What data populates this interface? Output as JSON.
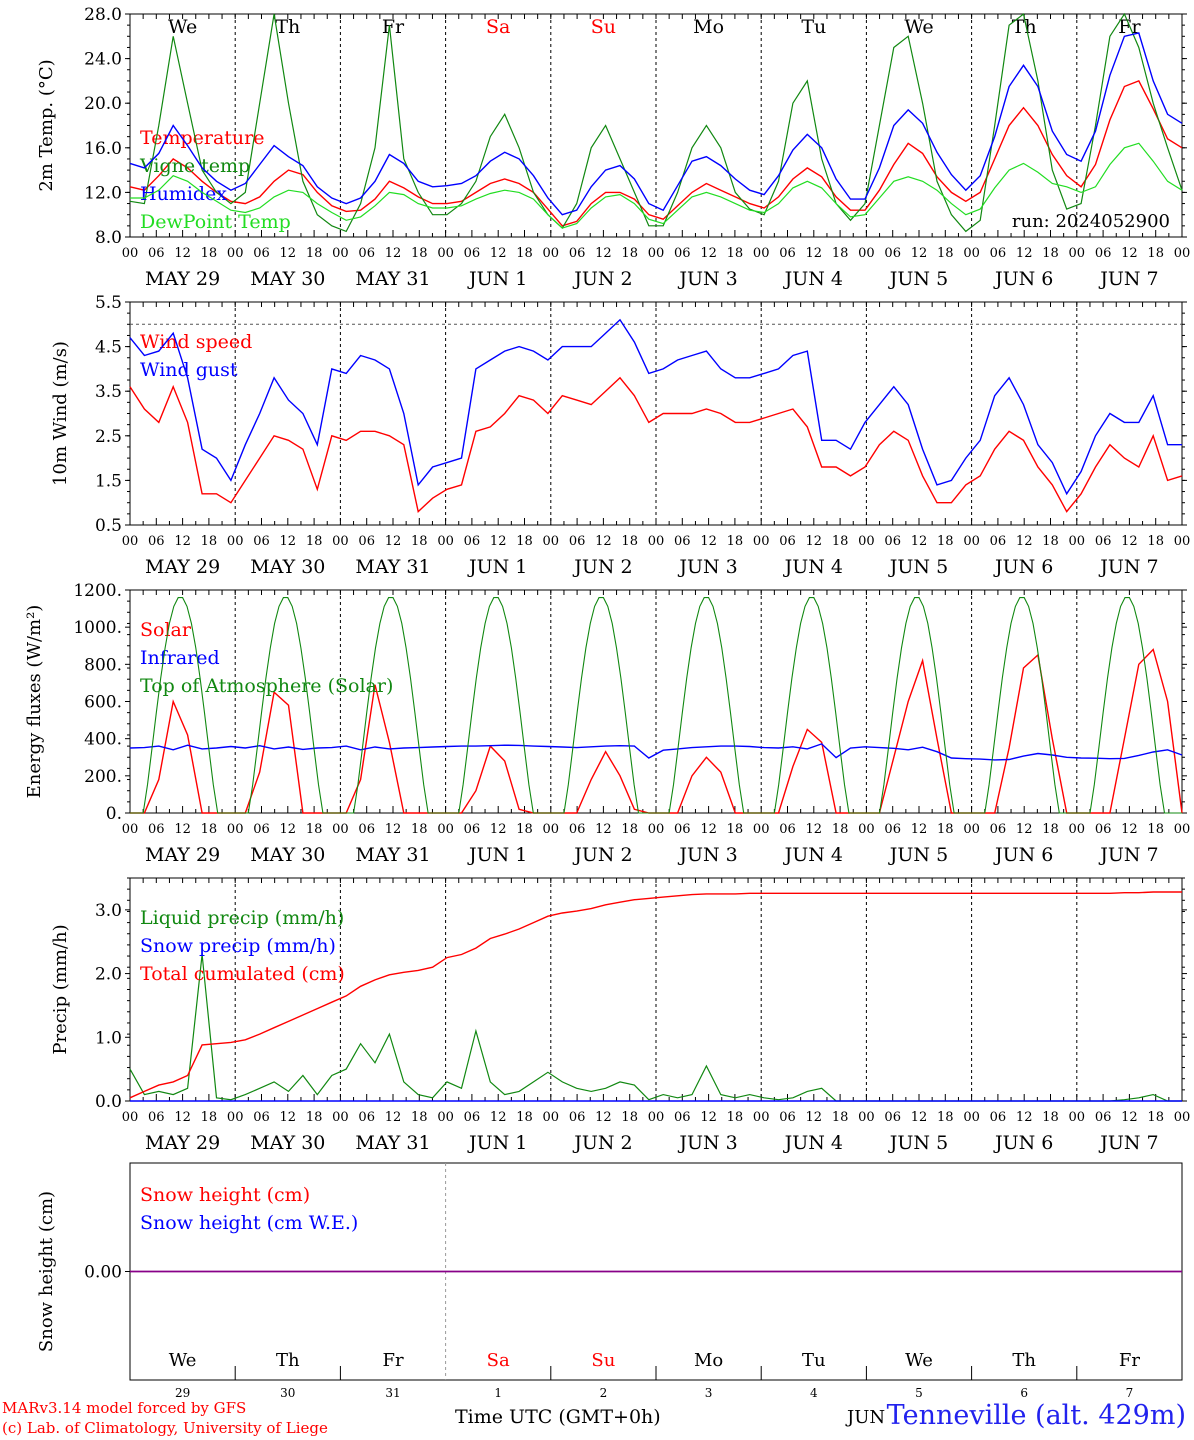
{
  "colors": {
    "red": "#ff0000",
    "green": "#118811",
    "blue": "#0000ff",
    "lime": "#22dd22",
    "purple": "#880088"
  },
  "day_tags": [
    "We",
    "Th",
    "Fr",
    "Sa",
    "Su",
    "Mo",
    "Tu",
    "We",
    "Th",
    "Fr"
  ],
  "day_tag_colors": [
    "#000000",
    "#000000",
    "#000000",
    "#ff0000",
    "#ff0000",
    "#000000",
    "#000000",
    "#000000",
    "#000000",
    "#000000"
  ],
  "date_labels": [
    "MAY 29",
    "MAY 30",
    "MAY 31",
    "JUN  1",
    "JUN  2",
    "JUN  3",
    "JUN  4",
    "JUN  5",
    "JUN  6",
    "JUN  7"
  ],
  "hour_labels": [
    "00",
    "06",
    "12",
    "18"
  ],
  "day_numbers": [
    "29",
    "30",
    "31",
    "1",
    "2",
    "3",
    "4",
    "5",
    "6",
    "7"
  ],
  "run_label": "run: 2024052900",
  "footer": {
    "credit_line1": "MARv3.14 model forced by GFS",
    "credit_line2": "(c) Lab. of Climatology, University of Liege",
    "x_title": "Time UTC (GMT+0h)",
    "month_label": "JUN",
    "station": "Tenneville (alt. 429m)"
  },
  "chart_data": [
    {
      "type": "line",
      "ylabel": "2m Temp. (°C)",
      "ylim": [
        8,
        28
      ],
      "yticks": [
        "8.0",
        "12.0",
        "16.0",
        "20.0",
        "24.0",
        "28.0"
      ],
      "x_unit": "hours since 2024-05-29 00 UTC (3-hourly)",
      "series": [
        {
          "name": "Temperature",
          "color": "red",
          "values": [
            12.5,
            12.2,
            13.5,
            15,
            14.2,
            13,
            12,
            11.2,
            11,
            11.6,
            13,
            14,
            13.6,
            12,
            10.8,
            10.3,
            10.4,
            11.4,
            13,
            12.4,
            11.6,
            11,
            11,
            11.2,
            12,
            12.8,
            13.2,
            12.8,
            12,
            10.5,
            9,
            9.4,
            11,
            12,
            12,
            11.4,
            10,
            9.6,
            10.8,
            12,
            12.8,
            12.2,
            11.6,
            11,
            10.6,
            11.6,
            13.2,
            14.2,
            13.4,
            11.6,
            10.4,
            10.4,
            12.2,
            14.5,
            16.4,
            15.5,
            13.4,
            12,
            11.2,
            12,
            15,
            18,
            19.6,
            18,
            15.4,
            13.5,
            12.5,
            14.5,
            18.5,
            21.5,
            22,
            19.5,
            16.8,
            16
          ]
        },
        {
          "name": "Vigne temp",
          "color": "green",
          "values": [
            11.2,
            11,
            18,
            26,
            20,
            14,
            12,
            11,
            12,
            20,
            28,
            20,
            13,
            10,
            9,
            8.5,
            11,
            16,
            27,
            15,
            12,
            10,
            10,
            11,
            13,
            17,
            19,
            16,
            12,
            10,
            8.8,
            11,
            16,
            18,
            15,
            12,
            9,
            9,
            12,
            16,
            18,
            16,
            12,
            10.5,
            10,
            13,
            20,
            22,
            15,
            11,
            9.5,
            11,
            18,
            25,
            26,
            20,
            13,
            10,
            8.5,
            9.5,
            18,
            27,
            28,
            22,
            14,
            10.5,
            11,
            18,
            26,
            28,
            25,
            20,
            16,
            12.2
          ]
        },
        {
          "name": "Humidex",
          "color": "blue",
          "values": [
            14.6,
            14.2,
            15.5,
            18,
            16.2,
            14.2,
            13,
            12.2,
            12.8,
            14.5,
            16.2,
            15.2,
            14.4,
            12.5,
            11.5,
            11,
            11.5,
            13,
            15.4,
            14.6,
            13,
            12.5,
            12.6,
            12.8,
            13.5,
            14.8,
            15.6,
            15,
            13.5,
            11.5,
            10,
            10.4,
            12.5,
            14,
            14.4,
            13.2,
            11,
            10.4,
            12.6,
            14.8,
            15.2,
            14.4,
            13.2,
            12.2,
            11.8,
            13.5,
            15.8,
            17.2,
            16,
            13.2,
            11.4,
            11.4,
            14.2,
            18,
            19.4,
            18.2,
            15.6,
            13.6,
            12.2,
            13.5,
            17,
            21.5,
            23.4,
            21.5,
            17.5,
            15.4,
            14.8,
            17.5,
            22.5,
            26,
            26.3,
            22,
            19,
            18.2
          ]
        },
        {
          "name": "DewPoint Temp",
          "color": "lime",
          "values": [
            11.5,
            11.5,
            12.2,
            13.5,
            13,
            12,
            11.2,
            10.4,
            10.2,
            10.6,
            11.6,
            12.2,
            12,
            11,
            10.2,
            9.5,
            9.8,
            10.8,
            12,
            11.8,
            11,
            10.6,
            10.6,
            10.8,
            11.4,
            11.9,
            12.2,
            12,
            11.4,
            10,
            8.8,
            9.2,
            10.6,
            11.6,
            11.8,
            11,
            9.6,
            9.2,
            10.4,
            11.6,
            12,
            11.6,
            11,
            10.4,
            10.2,
            11,
            12.4,
            13,
            12.4,
            11,
            9.8,
            10,
            11.5,
            13,
            13.4,
            13,
            12.2,
            11,
            10,
            10.5,
            12.4,
            14,
            14.6,
            13.8,
            12.8,
            12.5,
            12,
            12.5,
            14.5,
            16,
            16.4,
            14.8,
            13,
            12.2
          ]
        }
      ]
    },
    {
      "type": "line",
      "ylabel": "10m Wind (m/s)",
      "ylim": [
        0.5,
        5.5
      ],
      "yticks": [
        "0.5",
        "1.5",
        "2.5",
        "3.5",
        "4.5",
        "5.5"
      ],
      "reference_line": 5.0,
      "series": [
        {
          "name": "Wind speed",
          "color": "red",
          "values": [
            3.6,
            3.1,
            2.8,
            3.6,
            2.8,
            1.2,
            1.2,
            1.0,
            1.5,
            2.0,
            2.5,
            2.4,
            2.2,
            1.3,
            2.5,
            2.4,
            2.6,
            2.6,
            2.5,
            2.3,
            0.8,
            1.1,
            1.3,
            1.4,
            2.6,
            2.7,
            3.0,
            3.4,
            3.3,
            3.0,
            3.4,
            3.3,
            3.2,
            3.5,
            3.8,
            3.4,
            2.8,
            3.0,
            3.0,
            3.0,
            3.1,
            3.0,
            2.8,
            2.8,
            2.9,
            3.0,
            3.1,
            2.7,
            1.8,
            1.8,
            1.6,
            1.8,
            2.3,
            2.6,
            2.4,
            1.6,
            1.0,
            1.0,
            1.4,
            1.6,
            2.2,
            2.6,
            2.4,
            1.8,
            1.4,
            0.8,
            1.2,
            1.8,
            2.3,
            2.0,
            1.8,
            2.5,
            1.5,
            1.6
          ]
        },
        {
          "name": "Wind gust",
          "color": "blue",
          "values": [
            4.7,
            4.3,
            4.4,
            4.8,
            3.8,
            2.2,
            2.0,
            1.5,
            2.3,
            3.0,
            3.8,
            3.3,
            3.0,
            2.3,
            4.0,
            3.9,
            4.3,
            4.2,
            4.0,
            3.0,
            1.4,
            1.8,
            1.9,
            2.0,
            4.0,
            4.2,
            4.4,
            4.5,
            4.4,
            4.2,
            4.5,
            4.5,
            4.5,
            4.8,
            5.1,
            4.6,
            3.9,
            4.0,
            4.2,
            4.3,
            4.4,
            4.0,
            3.8,
            3.8,
            3.9,
            4.0,
            4.3,
            4.4,
            2.4,
            2.4,
            2.2,
            2.8,
            3.2,
            3.6,
            3.2,
            2.2,
            1.4,
            1.5,
            2.0,
            2.4,
            3.4,
            3.8,
            3.2,
            2.3,
            1.9,
            1.2,
            1.7,
            2.5,
            3.0,
            2.8,
            2.8,
            3.4,
            2.3,
            2.3
          ]
        }
      ]
    },
    {
      "type": "line",
      "ylabel": "Energy fluxes (W/m²)",
      "ylim": [
        0,
        1200
      ],
      "yticks": [
        "0.",
        "200.",
        "400.",
        "600.",
        "800.",
        "1000.",
        "1200."
      ],
      "series": [
        {
          "name": "Solar",
          "color": "red",
          "values": [
            0,
            0,
            180,
            600,
            420,
            0,
            0,
            0,
            0,
            220,
            650,
            580,
            0,
            0,
            0,
            0,
            180,
            690,
            380,
            0,
            0,
            0,
            0,
            0,
            120,
            360,
            280,
            20,
            0,
            0,
            0,
            0,
            180,
            330,
            200,
            20,
            0,
            0,
            0,
            200,
            300,
            220,
            0,
            0,
            0,
            0,
            250,
            450,
            380,
            0,
            0,
            0,
            0,
            300,
            600,
            820,
            400,
            0,
            0,
            0,
            0,
            350,
            780,
            850,
            400,
            0,
            0,
            0,
            0,
            400,
            800,
            880,
            600,
            0
          ]
        },
        {
          "name": "Infrared",
          "color": "blue",
          "values": [
            350,
            352,
            360,
            340,
            365,
            345,
            350,
            358,
            350,
            362,
            345,
            355,
            342,
            350,
            352,
            360,
            340,
            355,
            345,
            350,
            352,
            355,
            358,
            360,
            360,
            362,
            365,
            364,
            360,
            358,
            355,
            352,
            356,
            360,
            362,
            360,
            296,
            338,
            345,
            352,
            356,
            360,
            360,
            358,
            352,
            350,
            356,
            345,
            372,
            298,
            350,
            356,
            352,
            348,
            340,
            354,
            330,
            296,
            292,
            290,
            286,
            288,
            306,
            320,
            312,
            300,
            296,
            295,
            292,
            294,
            310,
            328,
            340,
            312
          ]
        },
        {
          "name": "Top of Atmosphere (Solar)",
          "color": "green",
          "sun_curve": true,
          "peak": 1165
        }
      ]
    },
    {
      "type": "line",
      "ylabel": "Precip (mm/h)",
      "ylim": [
        0,
        3.5
      ],
      "yticks": [
        "0.0",
        "1.0",
        "2.0",
        "3.0"
      ],
      "series": [
        {
          "name": "Liquid precip (mm/h)",
          "color": "green",
          "values": [
            0.5,
            0.1,
            0.15,
            0.1,
            0.2,
            2.3,
            0.05,
            0.02,
            0.1,
            0.2,
            0.3,
            0.15,
            0.4,
            0.1,
            0.4,
            0.5,
            0.9,
            0.6,
            1.05,
            0.3,
            0.1,
            0.05,
            0.3,
            0.2,
            1.1,
            0.3,
            0.1,
            0.15,
            0.3,
            0.45,
            0.3,
            0.2,
            0.15,
            0.2,
            0.3,
            0.25,
            0.02,
            0.1,
            0.05,
            0.1,
            0.55,
            0.1,
            0.05,
            0.1,
            0.05,
            0.02,
            0.05,
            0.15,
            0.2,
            0.0,
            0.0,
            0.0,
            0.0,
            0.0,
            0.0,
            0.0,
            0.0,
            0.0,
            0.0,
            0.0,
            0.0,
            0.0,
            0.0,
            0.0,
            0.0,
            0.0,
            0.0,
            0.0,
            0.0,
            0.02,
            0.05,
            0.1,
            0.0,
            0.0
          ]
        },
        {
          "name": "Snow precip (mm/h)",
          "color": "blue",
          "values": [
            0,
            0,
            0,
            0,
            0,
            0,
            0,
            0,
            0,
            0,
            0,
            0,
            0,
            0,
            0,
            0,
            0,
            0,
            0,
            0,
            0,
            0,
            0,
            0,
            0,
            0,
            0,
            0,
            0,
            0,
            0,
            0,
            0,
            0,
            0,
            0,
            0,
            0,
            0,
            0,
            0,
            0,
            0,
            0,
            0,
            0,
            0,
            0,
            0,
            0,
            0,
            0,
            0,
            0,
            0,
            0,
            0,
            0,
            0,
            0,
            0,
            0,
            0,
            0,
            0,
            0,
            0,
            0,
            0,
            0,
            0,
            0,
            0,
            0
          ]
        },
        {
          "name": "Total cumulated (cm)",
          "color": "red",
          "values": [
            0.05,
            0.15,
            0.25,
            0.3,
            0.4,
            0.88,
            0.9,
            0.92,
            0.96,
            1.05,
            1.15,
            1.25,
            1.35,
            1.45,
            1.55,
            1.65,
            1.8,
            1.9,
            1.98,
            2.02,
            2.05,
            2.1,
            2.25,
            2.3,
            2.4,
            2.55,
            2.62,
            2.7,
            2.8,
            2.9,
            2.95,
            2.98,
            3.02,
            3.08,
            3.12,
            3.16,
            3.18,
            3.2,
            3.22,
            3.24,
            3.25,
            3.25,
            3.25,
            3.26,
            3.26,
            3.26,
            3.26,
            3.26,
            3.26,
            3.26,
            3.26,
            3.26,
            3.26,
            3.26,
            3.26,
            3.26,
            3.26,
            3.26,
            3.26,
            3.26,
            3.26,
            3.26,
            3.26,
            3.26,
            3.26,
            3.26,
            3.26,
            3.26,
            3.26,
            3.27,
            3.27,
            3.28,
            3.28,
            3.28
          ]
        }
      ]
    },
    {
      "type": "line",
      "ylabel": "Snow height (cm)",
      "yticks": [
        "0.00"
      ],
      "series": [
        {
          "name": "Snow height (cm)",
          "color": "red",
          "constant": 0.0
        },
        {
          "name": "Snow height (cm W.E.)",
          "color": "blue",
          "constant": 0.0
        }
      ]
    }
  ]
}
